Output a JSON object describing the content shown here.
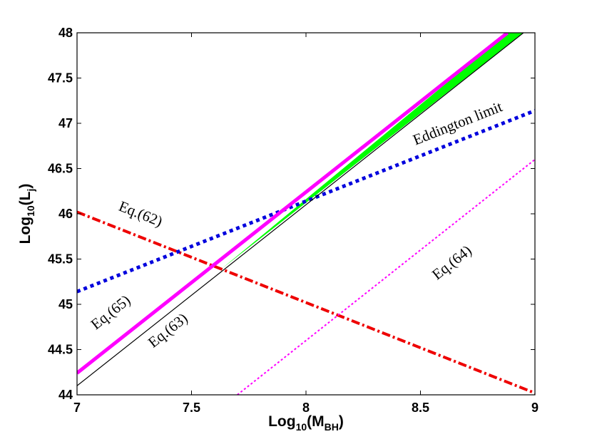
{
  "chart_data": {
    "type": "line",
    "title": "",
    "xlabel": {
      "base": "Log",
      "sub": "10",
      "paren_open": "(M",
      "sub2": "BH",
      "paren_close": ")"
    },
    "ylabel": {
      "base": "Log",
      "sub": "10",
      "paren_open": "(L",
      "sub2": "j",
      "paren_close": ")"
    },
    "xlim": [
      7,
      9
    ],
    "ylim": [
      44,
      48
    ],
    "xticks": [
      7,
      7.5,
      8,
      8.5,
      9
    ],
    "xtick_labels": [
      "7",
      "7.5",
      "8",
      "8.5",
      "9"
    ],
    "yticks": [
      44,
      44.5,
      45,
      45.5,
      46,
      46.5,
      47,
      47.5,
      48
    ],
    "ytick_labels": [
      "44",
      "44.5",
      "45",
      "45.5",
      "46",
      "46.5",
      "47",
      "47.5",
      "48"
    ],
    "grid": false,
    "shaded_region": {
      "name": "allowed band",
      "color": "#00ff00",
      "upper": [
        [
          7.63,
          45.39
        ],
        [
          8.88,
          48.0
        ]
      ],
      "lower": [
        [
          7.63,
          45.39
        ],
        [
          8.95,
          48.0
        ]
      ]
    },
    "series": [
      {
        "name": "Eq.(65)",
        "color": "#ff00ff",
        "style": "solid",
        "width": 5,
        "points": [
          [
            7.0,
            44.24
          ],
          [
            8.88,
            48.0
          ]
        ]
      },
      {
        "name": "Eq.(63)",
        "color": "#000000",
        "style": "solid",
        "width": 1.2,
        "points": [
          [
            7.0,
            44.1
          ],
          [
            8.95,
            48.0
          ]
        ]
      },
      {
        "name": "Eddington limit",
        "color": "#0000dd",
        "style": "dotted",
        "width": 5,
        "points": [
          [
            7.0,
            45.14
          ],
          [
            9.0,
            47.14
          ]
        ]
      },
      {
        "name": "Eq.(62)",
        "color": "#ee0000",
        "style": "dashdot",
        "width": 4,
        "points": [
          [
            7.0,
            46.02
          ],
          [
            9.0,
            44.02
          ]
        ]
      },
      {
        "name": "Eq.(64)",
        "color": "#ff00ff",
        "style": "dotted-thin",
        "width": 2,
        "points": [
          [
            7.7,
            44.0
          ],
          [
            9.0,
            46.6
          ]
        ]
      }
    ],
    "annotations": [
      {
        "text": "Eq.(62)",
        "x": 7.27,
        "y": 45.95,
        "angle_data": [
          [
            7.0,
            46.02
          ],
          [
            9.0,
            44.02
          ]
        ]
      },
      {
        "text": "Eddington limit",
        "x": 8.67,
        "y": 46.95,
        "angle_data": [
          [
            7.0,
            45.14
          ],
          [
            9.0,
            47.14
          ]
        ]
      },
      {
        "text": "Eq.(64)",
        "x": 8.65,
        "y": 45.42,
        "angle_data": [
          [
            7.7,
            44.0
          ],
          [
            9.0,
            46.6
          ]
        ]
      },
      {
        "text": "Eq.(65)",
        "x": 7.16,
        "y": 44.87,
        "angle_data": [
          [
            7.0,
            44.24
          ],
          [
            8.88,
            48.0
          ]
        ]
      },
      {
        "text": "Eq.(63)",
        "x": 7.41,
        "y": 44.67,
        "angle_data": [
          [
            7.0,
            44.1
          ],
          [
            8.95,
            48.0
          ]
        ]
      }
    ]
  }
}
